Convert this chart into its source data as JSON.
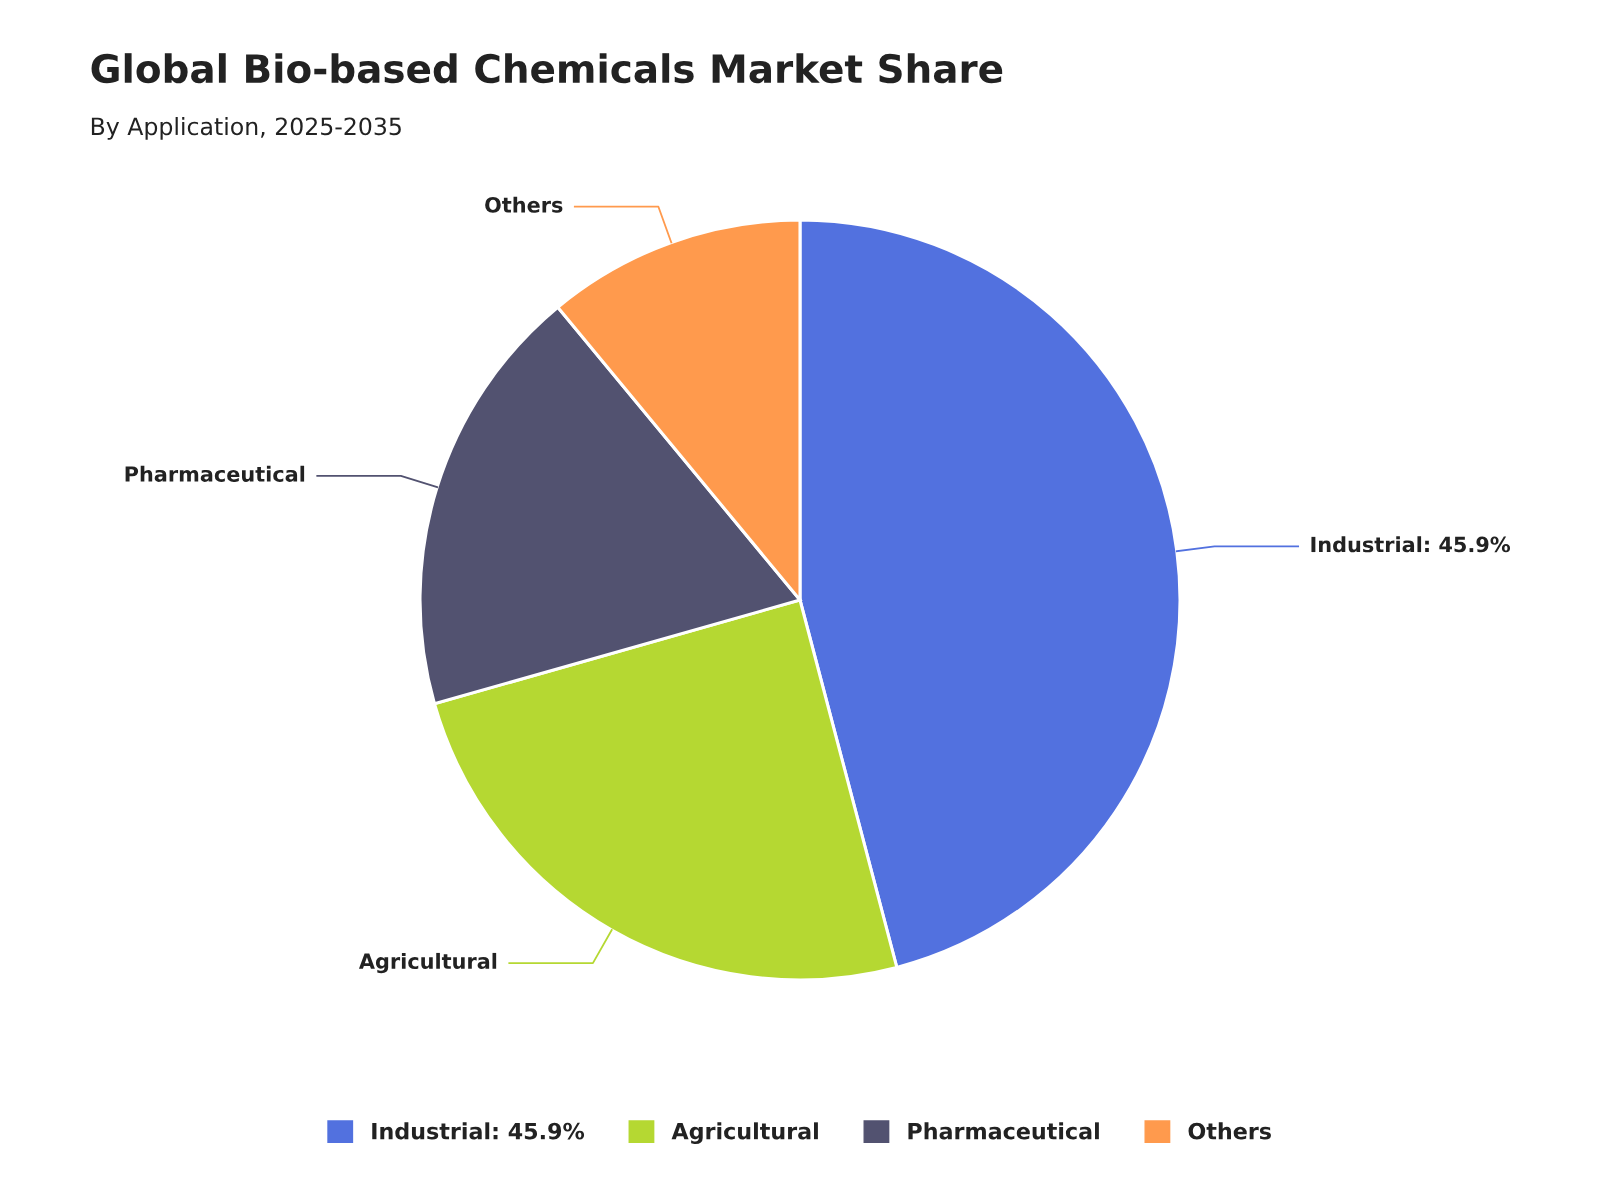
{
  "chart_data": {
    "type": "pie",
    "title": "Global Bio-based Chemicals Market Share",
    "subtitle": "By Application, 2025-2035",
    "categories": [
      "Industrial: 45.9%",
      "Agricultural",
      "Pharmaceutical",
      "Others"
    ],
    "values": [
      45.9,
      24.7,
      18.4,
      11.0
    ],
    "colors": [
      "#5271df",
      "#b5d832",
      "#525270",
      "#ff9a4d"
    ],
    "legend": "bottom"
  }
}
